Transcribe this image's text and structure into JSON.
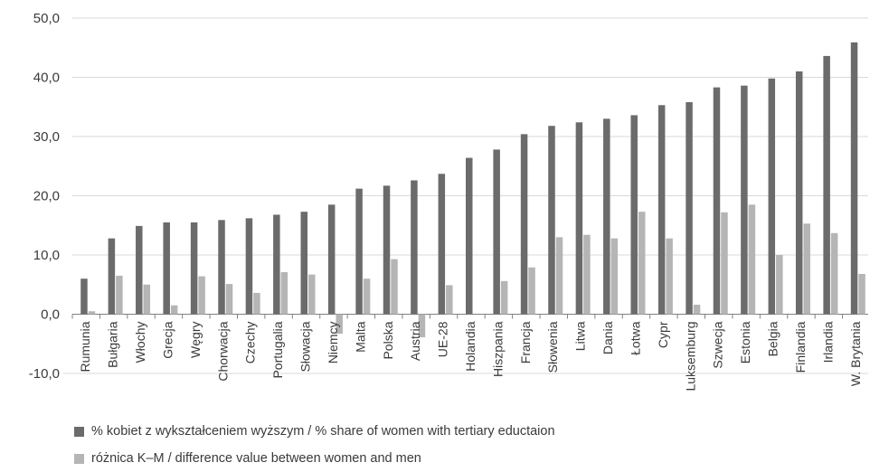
{
  "chart_data": {
    "type": "bar",
    "categories": [
      "Rumunia",
      "Bułgaria",
      "Włochy",
      "Grecja",
      "Węgry",
      "Chorwacja",
      "Czechy",
      "Portugalia",
      "Słowacja",
      "Niemcy",
      "Malta",
      "Polska",
      "Austria",
      "UE-28",
      "Holandia",
      "Hiszpania",
      "Francja",
      "Słowenia",
      "Litwa",
      "Dania",
      "Łotwa",
      "Cypr",
      "Luksemburg",
      "Szwecja",
      "Estonia",
      "Belgia",
      "Finlandia",
      "Irlandia",
      "W. Brytania"
    ],
    "series": [
      {
        "name": "% kobiet z wykształceniem wyższym / % share of women with tertiary eductaion",
        "color": "#6b6b6b",
        "values": [
          6.0,
          12.8,
          14.9,
          15.5,
          15.5,
          15.9,
          16.2,
          16.8,
          17.3,
          18.5,
          21.2,
          21.7,
          22.6,
          23.7,
          26.4,
          27.8,
          30.4,
          31.8,
          32.4,
          33.0,
          33.6,
          35.3,
          35.8,
          38.3,
          38.6,
          39.8,
          41.0,
          43.6,
          45.9
        ]
      },
      {
        "name": "różnica K–M / difference value between women and men",
        "color": "#b5b5b5",
        "values": [
          0.5,
          6.5,
          5.0,
          1.5,
          6.4,
          5.1,
          3.6,
          7.1,
          6.7,
          -3.3,
          6.0,
          9.3,
          -3.9,
          4.9,
          0.0,
          5.6,
          7.9,
          13.0,
          13.4,
          12.8,
          17.3,
          12.8,
          1.6,
          17.2,
          18.5,
          10.0,
          15.3,
          13.7,
          6.8
        ]
      }
    ],
    "yticks": [
      "50,0",
      "40,0",
      "30,0",
      "20,0",
      "10,0",
      "0,0",
      "-10,0"
    ],
    "ylim": [
      -10,
      50
    ],
    "grid": true,
    "legend_position": "bottom",
    "xlabel": "",
    "ylabel": ""
  },
  "legend": {
    "item1": "% kobiet z wykształceniem wyższym / % share of women with tertiary eductaion",
    "item2": "różnica K–M / difference value between women and men"
  }
}
